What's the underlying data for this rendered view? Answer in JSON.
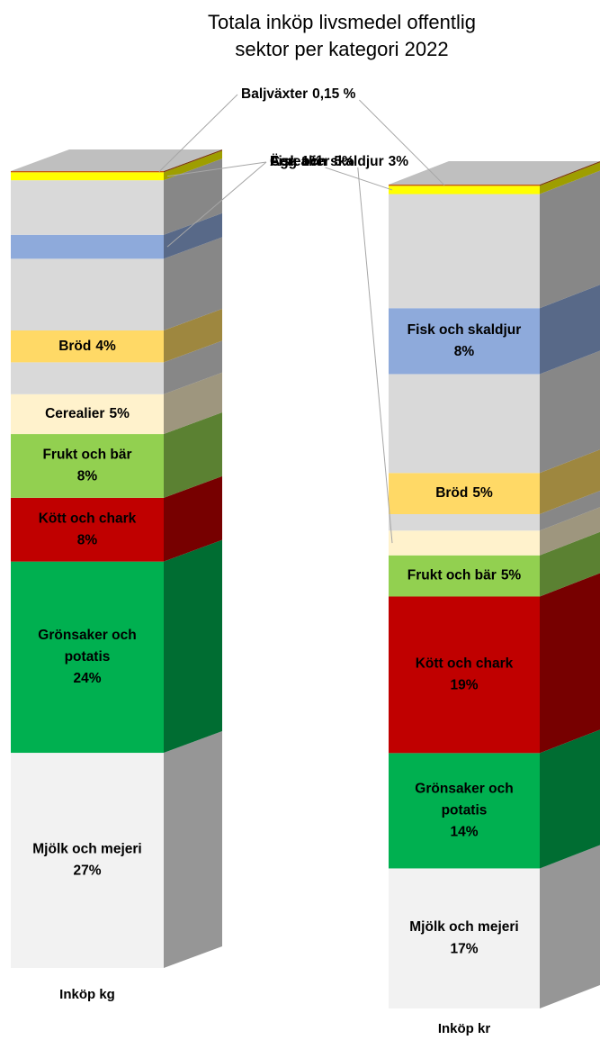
{
  "chart_data": {
    "type": "stacked-bar-3d",
    "title": "Totala inköp livsmedel offentlig sektor per kategori 2022",
    "categories": [
      "Inköp kg",
      "Inköp kr"
    ],
    "series": [
      {
        "name": "Mjölk och mejeri",
        "color": "#f2f2f2",
        "values": [
          27,
          17
        ],
        "value_labels": [
          "27%",
          "17%"
        ]
      },
      {
        "name": "Grönsaker och potatis",
        "color": "#00b050",
        "values": [
          24,
          14
        ],
        "value_labels": [
          "24%",
          "14%"
        ]
      },
      {
        "name": "Kött och chark",
        "color": "#c00000",
        "values": [
          8,
          19
        ],
        "value_labels": [
          "8%",
          "19%"
        ]
      },
      {
        "name": "Frukt och bär",
        "color": "#92d050",
        "values": [
          8,
          5
        ],
        "value_labels": [
          "8%",
          "5%"
        ]
      },
      {
        "name": "Cerealier",
        "color": "#fff2cc",
        "values": [
          5,
          3
        ],
        "value_labels": [
          "5%",
          "3%"
        ]
      },
      {
        "name": null,
        "color": "#d9d9d9",
        "values": [
          4,
          2
        ]
      },
      {
        "name": "Bröd",
        "color": "#ffd966",
        "values": [
          4,
          5
        ],
        "value_labels": [
          "4%",
          "5%"
        ]
      },
      {
        "name": null,
        "color": "#d9d9d9",
        "values": [
          9,
          12
        ]
      },
      {
        "name": "Fisk och skaldjur",
        "color": "#8eaadb",
        "values": [
          3,
          8
        ],
        "value_labels": [
          "3%",
          "8%"
        ]
      },
      {
        "name": null,
        "color": "#d9d9d9",
        "values": [
          6.85,
          13.85
        ]
      },
      {
        "name": "Ägg",
        "color": "#ffff00",
        "values": [
          1,
          1
        ],
        "value_labels": [
          "1%",
          "1%"
        ]
      },
      {
        "name": "Baljväxter",
        "color": "#c55a11",
        "values": [
          0.15,
          0.15
        ],
        "value_labels": [
          "0,15 %",
          "0,15 %"
        ]
      }
    ]
  }
}
